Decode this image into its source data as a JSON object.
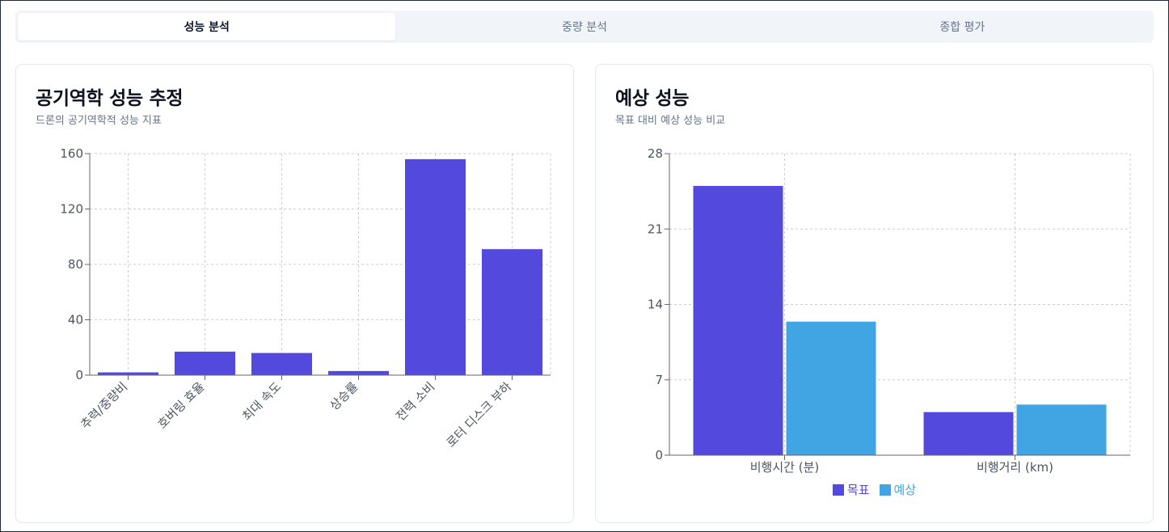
{
  "tabs": [
    {
      "label": "성능 분석",
      "active": true
    },
    {
      "label": "중량 분석",
      "active": false
    },
    {
      "label": "종합 평가",
      "active": false
    }
  ],
  "left_card": {
    "title": "공기역학 성능 추정",
    "subtitle": "드론의 공기역학적 성능 지표"
  },
  "right_card": {
    "title": "예상 성능",
    "subtitle": "목표 대비 예상 성능 비교"
  },
  "colors": {
    "primary": "#5449dd",
    "secondary": "#41a5e3",
    "grid": "#cccccc",
    "axis": "#666666"
  },
  "chart_data": [
    {
      "type": "bar",
      "categories": [
        "추력/중량비",
        "호버링 효율",
        "최대 속도",
        "상승률",
        "전력 소비",
        "로터 디스크 부하"
      ],
      "values": [
        2,
        17,
        16,
        3,
        156,
        91
      ],
      "ylim": [
        0,
        160
      ],
      "yticks": [
        0,
        40,
        80,
        120,
        160
      ],
      "grid": true,
      "xlabel": "",
      "ylabel": ""
    },
    {
      "type": "bar",
      "categories": [
        "비행시간 (분)",
        "비행거리 (km)"
      ],
      "series": [
        {
          "name": "목표",
          "values": [
            25,
            4
          ]
        },
        {
          "name": "예상",
          "values": [
            12.4,
            4.7
          ]
        }
      ],
      "ylim": [
        0,
        28
      ],
      "yticks": [
        0,
        7,
        14,
        21,
        28
      ],
      "grid": true,
      "legend": "bottom",
      "xlabel": "",
      "ylabel": ""
    }
  ]
}
